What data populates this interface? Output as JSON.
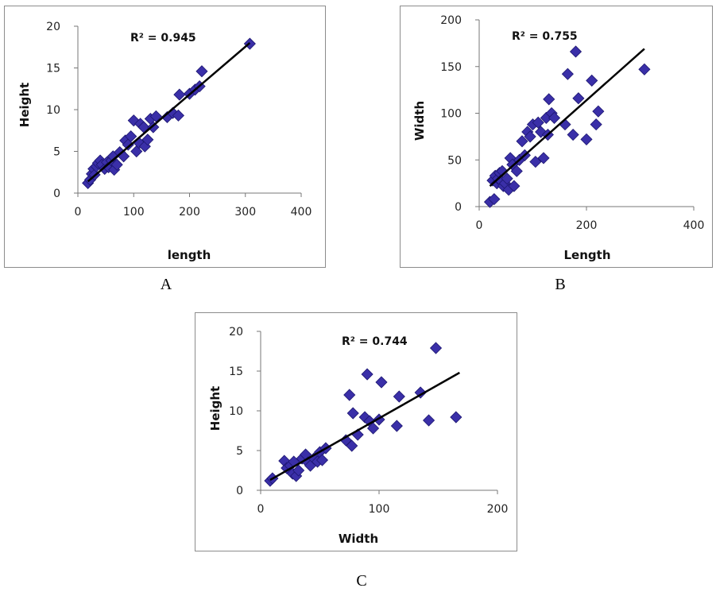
{
  "figure_labels": [
    "A",
    "B",
    "C"
  ],
  "chart_data": [
    {
      "type": "scatter",
      "title": "",
      "xlabel": "length",
      "ylabel": "Height",
      "xlim": [
        0,
        400
      ],
      "ylim": [
        0,
        20
      ],
      "xticks": [
        "0",
        "100",
        "200",
        "300",
        "400"
      ],
      "yticks": [
        "0",
        "5",
        "10",
        "15",
        "20"
      ],
      "r2_label": "R² = 0.945",
      "grid": false,
      "marker_color": "#3a2fa8",
      "trendline": {
        "x": [
          18,
          308
        ],
        "y": [
          1.4,
          18.0
        ]
      },
      "points": [
        [
          18,
          1.2
        ],
        [
          22,
          1.6
        ],
        [
          25,
          2.3
        ],
        [
          28,
          2.9
        ],
        [
          30,
          2.2
        ],
        [
          33,
          3.2
        ],
        [
          36,
          3.6
        ],
        [
          40,
          3.9
        ],
        [
          43,
          3.4
        ],
        [
          48,
          2.9
        ],
        [
          52,
          3.7
        ],
        [
          55,
          3.1
        ],
        [
          60,
          3.9
        ],
        [
          63,
          4.4
        ],
        [
          65,
          2.8
        ],
        [
          70,
          3.4
        ],
        [
          75,
          4.9
        ],
        [
          82,
          4.4
        ],
        [
          85,
          6.3
        ],
        [
          90,
          5.8
        ],
        [
          95,
          6.8
        ],
        [
          100,
          8.7
        ],
        [
          105,
          5.0
        ],
        [
          110,
          6.0
        ],
        [
          112,
          8.3
        ],
        [
          118,
          7.9
        ],
        [
          120,
          5.6
        ],
        [
          125,
          6.4
        ],
        [
          130,
          8.9
        ],
        [
          135,
          7.9
        ],
        [
          140,
          9.2
        ],
        [
          160,
          9.1
        ],
        [
          170,
          9.6
        ],
        [
          180,
          9.3
        ],
        [
          182,
          11.8
        ],
        [
          200,
          11.9
        ],
        [
          210,
          12.4
        ],
        [
          218,
          12.8
        ],
        [
          222,
          14.6
        ],
        [
          308,
          17.9
        ]
      ]
    },
    {
      "type": "scatter",
      "title": "",
      "xlabel": "Length",
      "ylabel": "Width",
      "xlim": [
        0,
        400
      ],
      "ylim": [
        0,
        200
      ],
      "xticks": [
        "0",
        "200",
        "400"
      ],
      "yticks": [
        "0",
        "50",
        "100",
        "150",
        "200"
      ],
      "r2_label": "R² = 0.755",
      "grid": false,
      "marker_color": "#3a2fa8",
      "trendline": {
        "x": [
          20,
          308
        ],
        "y": [
          22,
          169
        ]
      },
      "points": [
        [
          20,
          5
        ],
        [
          25,
          28
        ],
        [
          28,
          8
        ],
        [
          30,
          33
        ],
        [
          33,
          25
        ],
        [
          35,
          30
        ],
        [
          38,
          36
        ],
        [
          40,
          28
        ],
        [
          43,
          38
        ],
        [
          45,
          22
        ],
        [
          48,
          25
        ],
        [
          52,
          30
        ],
        [
          55,
          18
        ],
        [
          58,
          52
        ],
        [
          62,
          45
        ],
        [
          65,
          22
        ],
        [
          70,
          38
        ],
        [
          75,
          50
        ],
        [
          80,
          70
        ],
        [
          85,
          55
        ],
        [
          90,
          80
        ],
        [
          95,
          75
        ],
        [
          100,
          88
        ],
        [
          105,
          48
        ],
        [
          110,
          90
        ],
        [
          115,
          80
        ],
        [
          120,
          52
        ],
        [
          125,
          95
        ],
        [
          128,
          77
        ],
        [
          130,
          115
        ],
        [
          135,
          100
        ],
        [
          140,
          95
        ],
        [
          160,
          88
        ],
        [
          165,
          142
        ],
        [
          175,
          77
        ],
        [
          180,
          166
        ],
        [
          185,
          116
        ],
        [
          200,
          72
        ],
        [
          210,
          135
        ],
        [
          218,
          88
        ],
        [
          222,
          102
        ],
        [
          308,
          147
        ]
      ]
    },
    {
      "type": "scatter",
      "title": "",
      "xlabel": "Width",
      "ylabel": "Height",
      "xlim": [
        0,
        200
      ],
      "ylim": [
        0,
        20
      ],
      "xticks": [
        "0",
        "100",
        "200"
      ],
      "yticks": [
        "0",
        "5",
        "10",
        "15",
        "20"
      ],
      "r2_label": "R² = 0.744",
      "grid": false,
      "marker_color": "#3a2fa8",
      "trendline": {
        "x": [
          8,
          168
        ],
        "y": [
          1.3,
          14.8
        ]
      },
      "points": [
        [
          8,
          1.2
        ],
        [
          10,
          1.5
        ],
        [
          20,
          3.7
        ],
        [
          22,
          2.8
        ],
        [
          25,
          3.1
        ],
        [
          27,
          2.1
        ],
        [
          28,
          3.6
        ],
        [
          30,
          1.8
        ],
        [
          32,
          2.5
        ],
        [
          35,
          4.0
        ],
        [
          38,
          4.5
        ],
        [
          40,
          3.5
        ],
        [
          42,
          3.1
        ],
        [
          45,
          4.0
        ],
        [
          48,
          3.6
        ],
        [
          50,
          4.8
        ],
        [
          52,
          3.8
        ],
        [
          55,
          5.3
        ],
        [
          72,
          6.3
        ],
        [
          75,
          12.0
        ],
        [
          77,
          5.6
        ],
        [
          78,
          9.7
        ],
        [
          82,
          7.0
        ],
        [
          88,
          9.2
        ],
        [
          90,
          14.6
        ],
        [
          92,
          8.7
        ],
        [
          95,
          7.8
        ],
        [
          100,
          8.9
        ],
        [
          102,
          13.6
        ],
        [
          115,
          8.1
        ],
        [
          117,
          11.8
        ],
        [
          135,
          12.3
        ],
        [
          142,
          8.8
        ],
        [
          148,
          17.9
        ],
        [
          165,
          9.2
        ]
      ]
    }
  ]
}
